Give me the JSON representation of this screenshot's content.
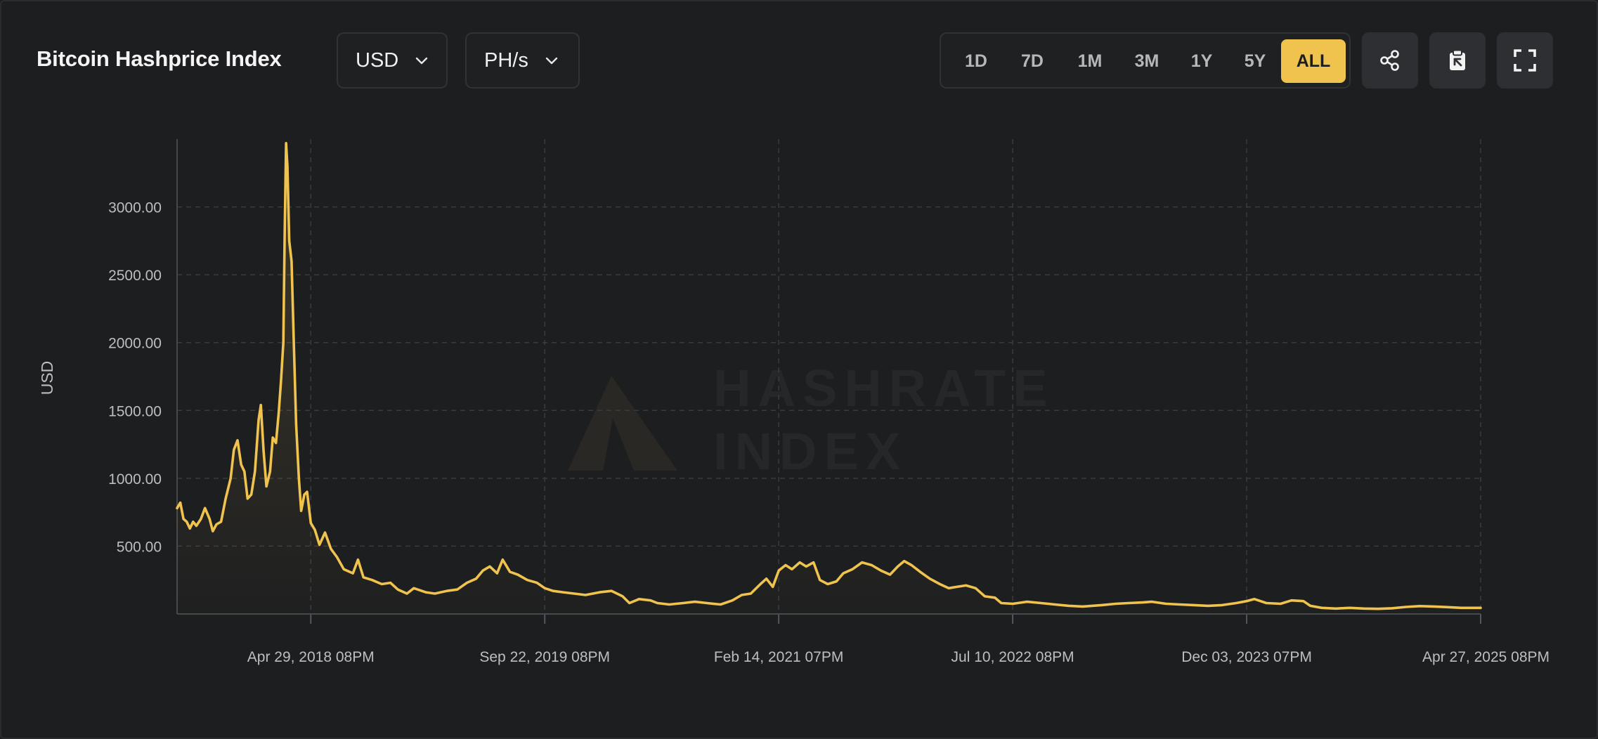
{
  "header": {
    "title": "Bitcoin Hashprice Index",
    "currency_label": "USD",
    "unit_label": "PH/s",
    "ranges": [
      "1D",
      "7D",
      "1M",
      "3M",
      "1Y",
      "5Y",
      "ALL"
    ],
    "active_range": "ALL",
    "share_icon": "share-icon",
    "clipboard_icon": "clipboard-icon",
    "fullscreen_icon": "fullscreen-icon"
  },
  "watermark": {
    "line1": "HASHRATE",
    "line2": "INDEX"
  },
  "colors": {
    "accent": "#f0c34e",
    "background": "#1d1e20",
    "grid": "#3a3b3e",
    "tick_text": "#bdbec1"
  },
  "chart_data": {
    "type": "area",
    "title": "",
    "xlabel": "",
    "ylabel": "USD",
    "ylim": [
      0,
      3500
    ],
    "yticks": [
      500,
      1000,
      1500,
      2000,
      2500,
      3000
    ],
    "ytick_labels": [
      "500.00",
      "1000.00",
      "1500.00",
      "2000.00",
      "2500.00",
      "3000.00"
    ],
    "xlim": [
      "2017-07-11",
      "2025-04-27"
    ],
    "xticks": [
      "2018-04-29",
      "2019-09-22",
      "2021-02-14",
      "2022-07-10",
      "2023-12-03",
      "2025-04-27"
    ],
    "xtick_labels": [
      "Apr 29, 2018 08PM",
      "Sep 22, 2019 08PM",
      "Feb 14, 2021 07PM",
      "Jul 10, 2022 08PM",
      "Dec 03, 2023 07PM",
      "Apr 27, 2025 08PM"
    ],
    "grid": true,
    "legend": "none",
    "series": [
      {
        "color": "#f0c34e",
        "points": [
          [
            "2017-07-11",
            780
          ],
          [
            "2017-07-18",
            820
          ],
          [
            "2017-07-25",
            700
          ],
          [
            "2017-08-01",
            680
          ],
          [
            "2017-08-08",
            630
          ],
          [
            "2017-08-15",
            680
          ],
          [
            "2017-08-22",
            650
          ],
          [
            "2017-09-01",
            700
          ],
          [
            "2017-09-10",
            780
          ],
          [
            "2017-09-20",
            700
          ],
          [
            "2017-09-27",
            610
          ],
          [
            "2017-10-05",
            660
          ],
          [
            "2017-10-15",
            680
          ],
          [
            "2017-10-25",
            850
          ],
          [
            "2017-11-05",
            1000
          ],
          [
            "2017-11-12",
            1210
          ],
          [
            "2017-11-20",
            1280
          ],
          [
            "2017-11-28",
            1100
          ],
          [
            "2017-12-05",
            1050
          ],
          [
            "2017-12-12",
            850
          ],
          [
            "2017-12-20",
            880
          ],
          [
            "2017-12-28",
            1050
          ],
          [
            "2018-01-05",
            1430
          ],
          [
            "2018-01-10",
            1540
          ],
          [
            "2018-01-16",
            1200
          ],
          [
            "2018-01-22",
            940
          ],
          [
            "2018-01-30",
            1050
          ],
          [
            "2018-02-05",
            1300
          ],
          [
            "2018-02-12",
            1260
          ],
          [
            "2018-02-18",
            1480
          ],
          [
            "2018-02-23",
            1720
          ],
          [
            "2018-02-28",
            2000
          ],
          [
            "2018-03-03",
            2800
          ],
          [
            "2018-03-06",
            3470
          ],
          [
            "2018-03-09",
            3300
          ],
          [
            "2018-03-13",
            2750
          ],
          [
            "2018-03-18",
            2600
          ],
          [
            "2018-03-23",
            2000
          ],
          [
            "2018-03-28",
            1400
          ],
          [
            "2018-04-03",
            1000
          ],
          [
            "2018-04-08",
            760
          ],
          [
            "2018-04-15",
            880
          ],
          [
            "2018-04-21",
            900
          ],
          [
            "2018-04-29",
            670
          ],
          [
            "2018-05-08",
            620
          ],
          [
            "2018-05-18",
            510
          ],
          [
            "2018-05-30",
            600
          ],
          [
            "2018-06-12",
            480
          ],
          [
            "2018-06-25",
            420
          ],
          [
            "2018-07-10",
            330
          ],
          [
            "2018-07-30",
            300
          ],
          [
            "2018-08-10",
            400
          ],
          [
            "2018-08-22",
            270
          ],
          [
            "2018-09-10",
            250
          ],
          [
            "2018-10-01",
            220
          ],
          [
            "2018-10-20",
            230
          ],
          [
            "2018-11-05",
            180
          ],
          [
            "2018-11-25",
            150
          ],
          [
            "2018-12-10",
            190
          ],
          [
            "2019-01-05",
            160
          ],
          [
            "2019-01-25",
            150
          ],
          [
            "2019-02-20",
            170
          ],
          [
            "2019-03-15",
            180
          ],
          [
            "2019-04-05",
            230
          ],
          [
            "2019-04-25",
            260
          ],
          [
            "2019-05-10",
            320
          ],
          [
            "2019-05-25",
            350
          ],
          [
            "2019-06-10",
            300
          ],
          [
            "2019-06-22",
            400
          ],
          [
            "2019-07-08",
            310
          ],
          [
            "2019-07-25",
            290
          ],
          [
            "2019-08-15",
            250
          ],
          [
            "2019-09-05",
            230
          ],
          [
            "2019-09-22",
            190
          ],
          [
            "2019-10-10",
            170
          ],
          [
            "2019-11-01",
            160
          ],
          [
            "2019-11-25",
            150
          ],
          [
            "2019-12-20",
            140
          ],
          [
            "2020-01-20",
            160
          ],
          [
            "2020-02-15",
            170
          ],
          [
            "2020-03-10",
            130
          ],
          [
            "2020-03-25",
            80
          ],
          [
            "2020-04-15",
            110
          ],
          [
            "2020-05-10",
            100
          ],
          [
            "2020-05-25",
            80
          ],
          [
            "2020-06-20",
            70
          ],
          [
            "2020-07-20",
            80
          ],
          [
            "2020-08-15",
            90
          ],
          [
            "2020-09-10",
            80
          ],
          [
            "2020-10-10",
            70
          ],
          [
            "2020-11-05",
            100
          ],
          [
            "2020-11-25",
            140
          ],
          [
            "2020-12-15",
            150
          ],
          [
            "2021-01-05",
            220
          ],
          [
            "2021-01-18",
            260
          ],
          [
            "2021-02-01",
            200
          ],
          [
            "2021-02-14",
            320
          ],
          [
            "2021-03-01",
            360
          ],
          [
            "2021-03-15",
            330
          ],
          [
            "2021-04-01",
            380
          ],
          [
            "2021-04-15",
            350
          ],
          [
            "2021-05-01",
            380
          ],
          [
            "2021-05-15",
            250
          ],
          [
            "2021-06-01",
            220
          ],
          [
            "2021-06-20",
            240
          ],
          [
            "2021-07-05",
            300
          ],
          [
            "2021-07-25",
            330
          ],
          [
            "2021-08-15",
            380
          ],
          [
            "2021-09-05",
            360
          ],
          [
            "2021-09-25",
            320
          ],
          [
            "2021-10-15",
            290
          ],
          [
            "2021-11-01",
            350
          ],
          [
            "2021-11-15",
            390
          ],
          [
            "2021-12-01",
            360
          ],
          [
            "2021-12-20",
            310
          ],
          [
            "2022-01-10",
            260
          ],
          [
            "2022-02-01",
            220
          ],
          [
            "2022-02-20",
            190
          ],
          [
            "2022-03-10",
            200
          ],
          [
            "2022-03-30",
            210
          ],
          [
            "2022-04-20",
            190
          ],
          [
            "2022-05-10",
            130
          ],
          [
            "2022-06-01",
            120
          ],
          [
            "2022-06-15",
            80
          ],
          [
            "2022-07-10",
            75
          ],
          [
            "2022-08-10",
            90
          ],
          [
            "2022-09-10",
            80
          ],
          [
            "2022-10-10",
            70
          ],
          [
            "2022-11-10",
            60
          ],
          [
            "2022-12-10",
            55
          ],
          [
            "2023-01-20",
            65
          ],
          [
            "2023-02-20",
            75
          ],
          [
            "2023-03-20",
            80
          ],
          [
            "2023-04-20",
            85
          ],
          [
            "2023-05-10",
            90
          ],
          [
            "2023-06-10",
            75
          ],
          [
            "2023-07-10",
            70
          ],
          [
            "2023-08-10",
            65
          ],
          [
            "2023-09-10",
            60
          ],
          [
            "2023-10-10",
            65
          ],
          [
            "2023-11-10",
            80
          ],
          [
            "2023-12-03",
            95
          ],
          [
            "2023-12-20",
            110
          ],
          [
            "2024-01-15",
            80
          ],
          [
            "2024-02-15",
            75
          ],
          [
            "2024-03-10",
            100
          ],
          [
            "2024-04-05",
            95
          ],
          [
            "2024-04-20",
            60
          ],
          [
            "2024-05-15",
            45
          ],
          [
            "2024-06-15",
            40
          ],
          [
            "2024-07-15",
            45
          ],
          [
            "2024-08-15",
            40
          ],
          [
            "2024-09-15",
            38
          ],
          [
            "2024-10-15",
            42
          ],
          [
            "2024-11-15",
            52
          ],
          [
            "2024-12-15",
            58
          ],
          [
            "2025-01-15",
            55
          ],
          [
            "2025-02-15",
            50
          ],
          [
            "2025-03-15",
            45
          ],
          [
            "2025-04-27",
            45
          ]
        ]
      }
    ]
  }
}
